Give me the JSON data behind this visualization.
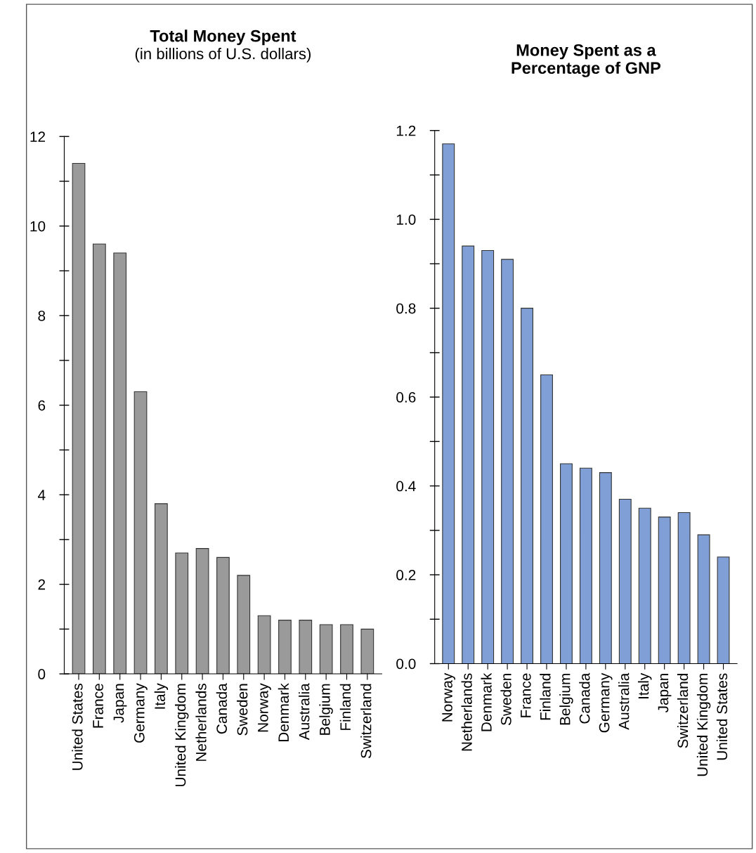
{
  "chart_data": [
    {
      "type": "bar",
      "title": "Total Money Spent",
      "subtitle": "(in billions of U.S. dollars)",
      "categories": [
        "United States",
        "France",
        "Japan",
        "Germany",
        "Italy",
        "United Kingdom",
        "Netherlands",
        "Canada",
        "Sweden",
        "Norway",
        "Denmark",
        "Australia",
        "Belgium",
        "Finland",
        "Switzerland"
      ],
      "values": [
        11.4,
        9.6,
        9.4,
        6.3,
        3.8,
        2.7,
        2.8,
        2.6,
        2.2,
        1.3,
        1.2,
        1.2,
        1.1,
        1.1,
        1.0
      ],
      "color": "#9a9a9a",
      "ylim": [
        0,
        12
      ],
      "yticks": [
        0,
        {
          "value": 1,
          "label": null
        },
        2,
        {
          "value": 3,
          "label": null
        },
        4,
        {
          "value": 5,
          "label": null
        },
        6,
        {
          "value": 7,
          "label": null
        },
        8,
        {
          "value": 9,
          "label": null
        },
        10,
        {
          "value": 11,
          "label": null
        },
        12
      ],
      "grid": false,
      "legend": false
    },
    {
      "type": "bar",
      "title": "Money Spent as a\nPercentage of GNP",
      "categories": [
        "Norway",
        "Netherlands",
        "Denmark",
        "Sweden",
        "France",
        "Finland",
        "Belgium",
        "Canada",
        "Germany",
        "Australia",
        "Italy",
        "Japan",
        "Switzerland",
        "United Kingdom",
        "United States"
      ],
      "values": [
        1.17,
        0.94,
        0.93,
        0.91,
        0.8,
        0.65,
        0.45,
        0.44,
        0.43,
        0.37,
        0.35,
        0.33,
        0.34,
        0.29,
        0.24
      ],
      "color": "#7f9fd6",
      "ylim": [
        0,
        1.2
      ],
      "yticks": [
        {
          "value": 0,
          "label": "0.0"
        },
        {
          "value": 0.1,
          "label": null
        },
        0.2,
        {
          "value": 0.3,
          "label": null
        },
        0.4,
        {
          "value": 0.5,
          "label": null
        },
        0.6,
        {
          "value": 0.7,
          "label": null
        },
        0.8,
        {
          "value": 0.9,
          "label": null
        },
        {
          "value": 1.0,
          "label": "1.0"
        },
        {
          "value": 1.1,
          "label": null
        },
        1.2
      ],
      "grid": false,
      "legend": false
    }
  ]
}
